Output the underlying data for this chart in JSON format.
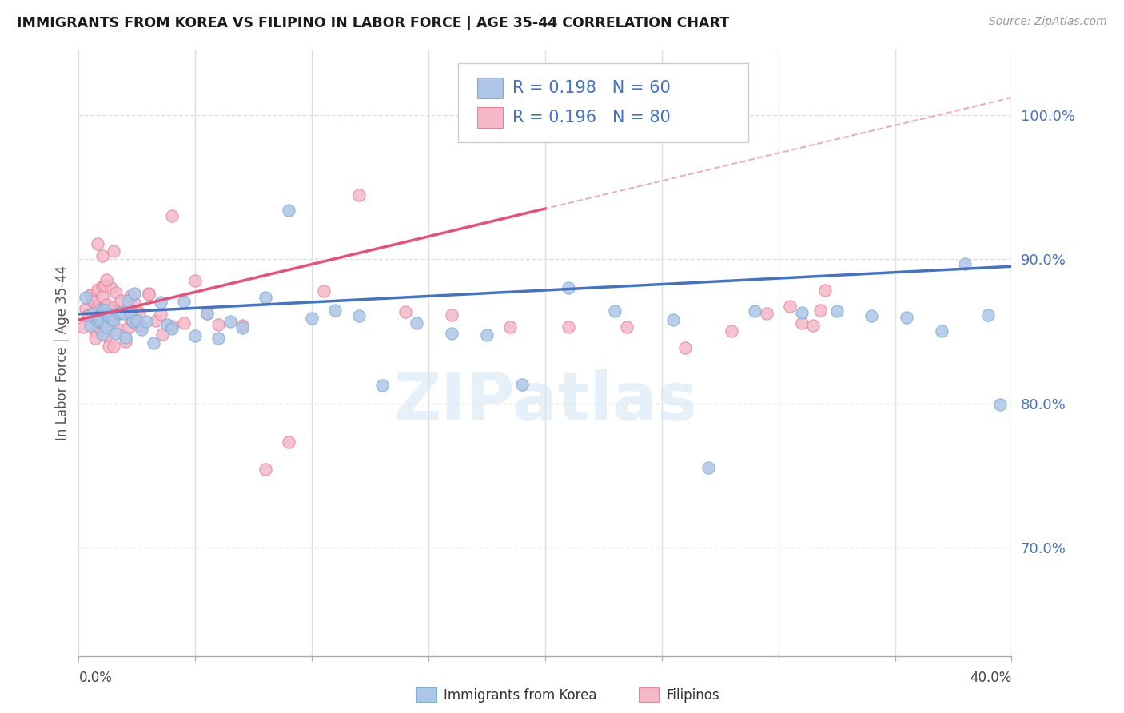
{
  "title": "IMMIGRANTS FROM KOREA VS FILIPINO IN LABOR FORCE | AGE 35-44 CORRELATION CHART",
  "source": "Source: ZipAtlas.com",
  "ylabel": "In Labor Force | Age 35-44",
  "y_ticks": [
    0.7,
    0.8,
    0.9,
    1.0
  ],
  "y_tick_labels": [
    "70.0%",
    "80.0%",
    "90.0%",
    "100.0%"
  ],
  "x_min": 0.0,
  "x_max": 0.4,
  "y_min": 0.625,
  "y_max": 1.045,
  "korea_color": "#aec6e8",
  "korea_edge": "#7bafd4",
  "filipino_color": "#f4b8c8",
  "filipino_edge": "#e8829a",
  "korea_line_color": "#4472c4",
  "filipino_line_color": "#e8507a",
  "dashed_line_color": "#e8b0c0",
  "grid_color": "#e0e0e0",
  "label_color": "#4472c4",
  "watermark_color": "#d0e4f5",
  "R_korea": "0.198",
  "N_korea": "60",
  "R_filipino": "0.196",
  "N_filipino": "80",
  "watermark": "ZIPatlas",
  "korea_x": [
    0.003,
    0.005,
    0.006,
    0.007,
    0.008,
    0.008,
    0.009,
    0.01,
    0.01,
    0.011,
    0.012,
    0.012,
    0.013,
    0.014,
    0.015,
    0.016,
    0.017,
    0.018,
    0.019,
    0.02,
    0.021,
    0.022,
    0.023,
    0.024,
    0.025,
    0.027,
    0.029,
    0.032,
    0.035,
    0.038,
    0.04,
    0.045,
    0.05,
    0.055,
    0.06,
    0.065,
    0.07,
    0.08,
    0.09,
    0.1,
    0.11,
    0.12,
    0.13,
    0.145,
    0.16,
    0.175,
    0.19,
    0.21,
    0.23,
    0.255,
    0.27,
    0.29,
    0.31,
    0.325,
    0.34,
    0.355,
    0.37,
    0.38,
    0.39,
    0.395
  ],
  "korea_y": [
    0.86,
    0.858,
    0.862,
    0.856,
    0.864,
    0.86,
    0.858,
    0.862,
    0.857,
    0.86,
    0.858,
    0.863,
    0.856,
    0.862,
    0.86,
    0.86,
    0.858,
    0.862,
    0.86,
    0.858,
    0.858,
    0.862,
    0.86,
    0.86,
    0.858,
    0.863,
    0.86,
    0.86,
    0.862,
    0.858,
    0.858,
    0.862,
    0.86,
    0.858,
    0.862,
    0.862,
    0.862,
    0.862,
    0.92,
    0.862,
    0.858,
    0.862,
    0.808,
    0.862,
    0.862,
    0.862,
    0.81,
    0.862,
    0.862,
    0.862,
    0.74,
    0.862,
    0.862,
    0.862,
    0.862,
    0.862,
    0.862,
    0.893,
    0.862,
    0.79
  ],
  "filipino_x": [
    0.002,
    0.003,
    0.004,
    0.004,
    0.005,
    0.005,
    0.006,
    0.006,
    0.006,
    0.007,
    0.007,
    0.007,
    0.008,
    0.008,
    0.008,
    0.009,
    0.009,
    0.01,
    0.01,
    0.01,
    0.011,
    0.011,
    0.011,
    0.012,
    0.012,
    0.013,
    0.013,
    0.014,
    0.014,
    0.015,
    0.015,
    0.016,
    0.016,
    0.017,
    0.017,
    0.018,
    0.019,
    0.02,
    0.021,
    0.022,
    0.023,
    0.024,
    0.025,
    0.027,
    0.03,
    0.033,
    0.036,
    0.04,
    0.045,
    0.05,
    0.055,
    0.06,
    0.07,
    0.08,
    0.09,
    0.105,
    0.12,
    0.14,
    0.16,
    0.185,
    0.21,
    0.235,
    0.26,
    0.28,
    0.295,
    0.305,
    0.31,
    0.315,
    0.318,
    0.32,
    0.008,
    0.01,
    0.012,
    0.015,
    0.018,
    0.022,
    0.026,
    0.03,
    0.035,
    0.04
  ],
  "filipino_y": [
    0.86,
    0.858,
    0.862,
    0.856,
    0.862,
    0.87,
    0.858,
    0.864,
    0.856,
    0.86,
    0.87,
    0.858,
    0.862,
    0.856,
    0.87,
    0.856,
    0.864,
    0.86,
    0.868,
    0.856,
    0.862,
    0.87,
    0.858,
    0.858,
    0.87,
    0.86,
    0.856,
    0.86,
    0.866,
    0.856,
    0.862,
    0.858,
    0.868,
    0.856,
    0.862,
    0.858,
    0.86,
    0.858,
    0.86,
    0.858,
    0.86,
    0.858,
    0.858,
    0.858,
    0.858,
    0.858,
    0.858,
    0.93,
    0.858,
    0.878,
    0.858,
    0.858,
    0.858,
    0.76,
    0.76,
    0.858,
    0.945,
    0.858,
    0.858,
    0.858,
    0.858,
    0.858,
    0.858,
    0.858,
    0.858,
    0.858,
    0.858,
    0.858,
    0.858,
    0.858,
    0.92,
    0.91,
    0.89,
    0.9,
    0.88,
    0.87,
    0.87,
    0.87,
    0.865,
    0.858
  ]
}
